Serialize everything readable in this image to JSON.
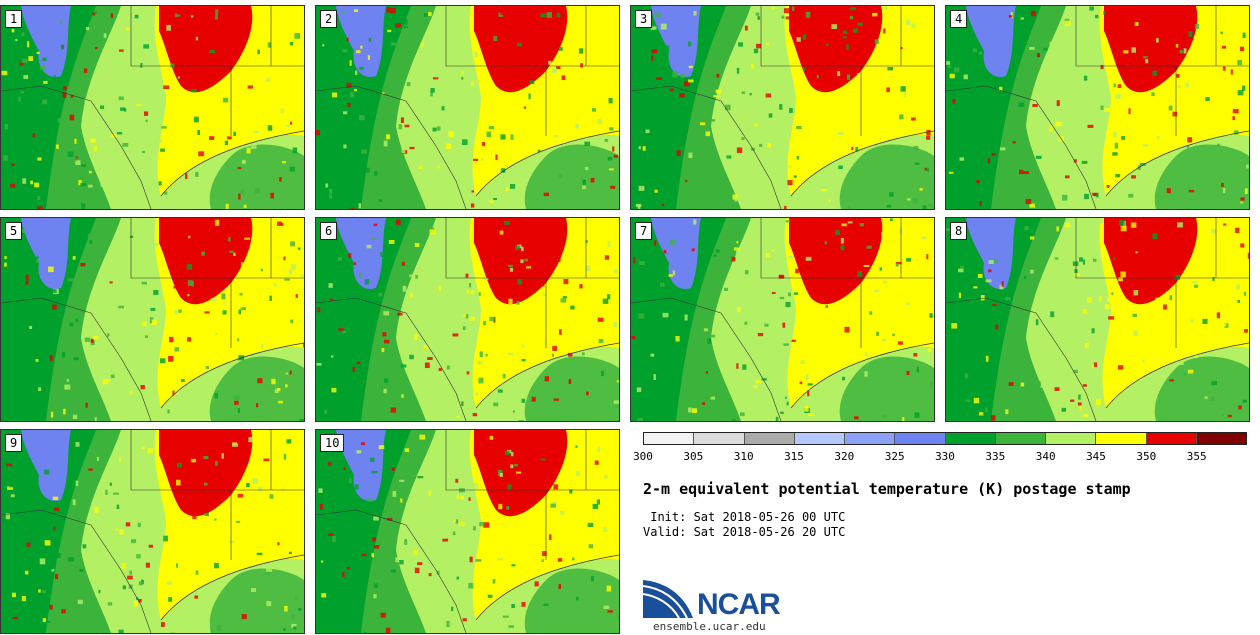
{
  "panels": [
    {
      "label": "1"
    },
    {
      "label": "2"
    },
    {
      "label": "3"
    },
    {
      "label": "4"
    },
    {
      "label": "5"
    },
    {
      "label": "6"
    },
    {
      "label": "7"
    },
    {
      "label": "8"
    },
    {
      "label": "9"
    },
    {
      "label": "10"
    }
  ],
  "colorbar": {
    "ticks": [
      "300",
      "305",
      "310",
      "315",
      "320",
      "325",
      "330",
      "335",
      "340",
      "345",
      "350",
      "355"
    ],
    "colors": [
      "#f2f2f2",
      "#dcdcdc",
      "#aaaaaa",
      "#b4c8fa",
      "#8ca0f5",
      "#6e82f0",
      "#00a02d",
      "#3cb43c",
      "#b4f064",
      "#ffff00",
      "#e60000",
      "#800000"
    ]
  },
  "title": "2-m equivalent potential temperature (K) postage stamp",
  "init": " Init: Sat 2018-05-26 00 UTC",
  "valid": "Valid: Sat 2018-05-26 20 UTC",
  "logo": {
    "text": "NCAR",
    "url_text": "ensemble.ucar.edu"
  }
}
